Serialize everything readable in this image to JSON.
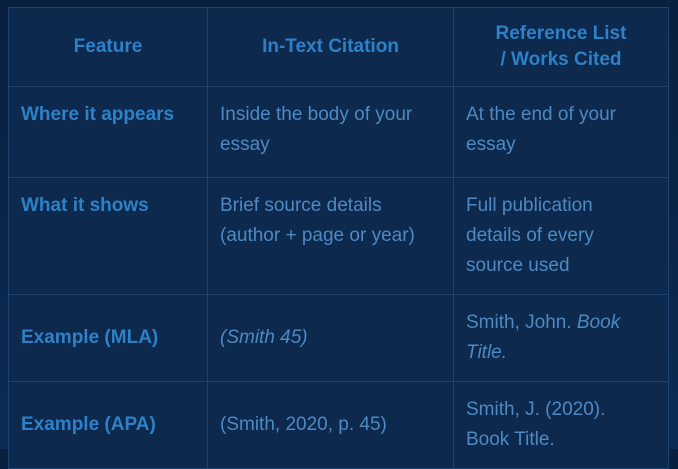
{
  "theme": {
    "page_bg_top": "#09203f",
    "page_bg_bottom": "#0d2b54",
    "cell_bg": "#0d2a4e",
    "border_color": "#1c4472",
    "heading_text": "#2e80c7",
    "body_text": "#4e89c1"
  },
  "chart_data": {
    "type": "table",
    "columns": [
      "Feature",
      "In-Text Citation",
      "Reference List / Works Cited"
    ],
    "rows": [
      [
        "Where it appears",
        "Inside the body of your essay",
        "At the end of your essay"
      ],
      [
        "What it shows",
        "Brief source details (author + page or year)",
        "Full publication details of every source used"
      ],
      [
        "Example (MLA)",
        "(Smith 45)",
        "Smith, John. Book Title."
      ],
      [
        "Example (APA)",
        "(Smith, 2020, p. 45)",
        "Smith, J. (2020). Book Title."
      ]
    ]
  },
  "table": {
    "headers": [
      {
        "label": "Feature"
      },
      {
        "label": "In-Text Citation"
      },
      {
        "label": "Reference List\n/ Works Cited"
      }
    ],
    "rows": [
      {
        "feature": "Where it appears",
        "in_text": [
          {
            "text": "Inside the body of your\nessay",
            "italic": false
          }
        ],
        "reference": [
          {
            "text": "At the end of your\nessay",
            "italic": false
          }
        ]
      },
      {
        "feature": "What it shows",
        "in_text": [
          {
            "text": "Brief source details\n(author + page or year)",
            "italic": false
          }
        ],
        "reference": [
          {
            "text": "Full publication\ndetails of every\nsource used",
            "italic": false
          }
        ]
      },
      {
        "feature": "Example (MLA)",
        "in_text": [
          {
            "text": "(Smith 45)",
            "italic": true
          }
        ],
        "reference": [
          {
            "text": "Smith, John. ",
            "italic": false
          },
          {
            "text": "Book\nTitle.",
            "italic": true
          }
        ]
      },
      {
        "feature": "Example (APA)",
        "in_text": [
          {
            "text": "(Smith, 2020, p. 45)",
            "italic": false
          }
        ],
        "reference": [
          {
            "text": "Smith, J. (2020).\nBook Title.",
            "italic": false
          }
        ]
      }
    ]
  }
}
